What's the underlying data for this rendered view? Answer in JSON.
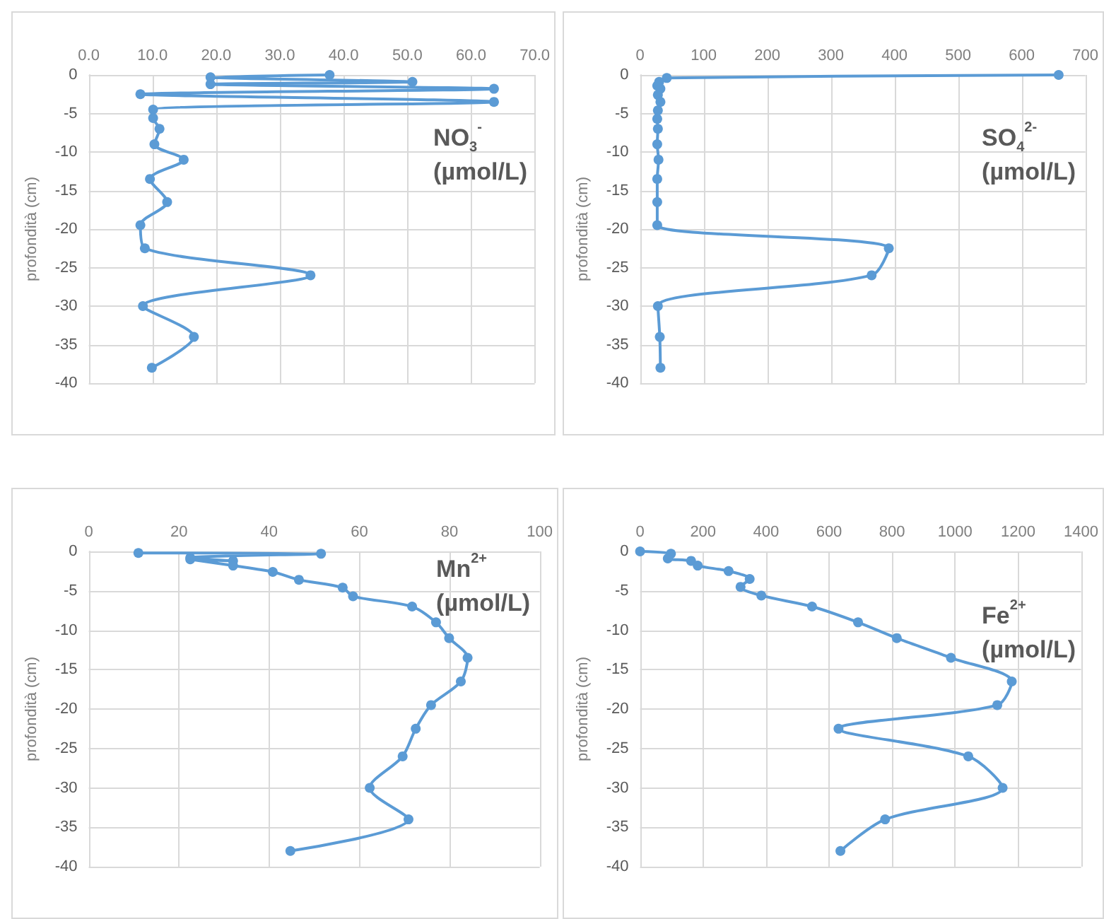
{
  "chart_data": [
    {
      "type": "line",
      "title": "NO$_{3}$$^{-}$ (µmol/L)",
      "ylabel": "profondità (cm)",
      "marker": "circle",
      "line_style": "solid",
      "grid": true,
      "xlim": [
        0,
        70
      ],
      "xticks": [
        {
          "value": 0,
          "label": "0.0"
        },
        {
          "value": 10,
          "label": "10.0"
        },
        {
          "value": 20,
          "label": "20.0"
        },
        {
          "value": 30,
          "label": "30.0"
        },
        {
          "value": 40,
          "label": "40.0"
        },
        {
          "value": 50,
          "label": "50.0"
        },
        {
          "value": 60,
          "label": "60.0"
        },
        {
          "value": 70,
          "label": "70.0"
        }
      ],
      "ylim": [
        -40,
        0
      ],
      "yticks": [
        -40,
        -35,
        -30,
        -25,
        -20,
        -15,
        -10,
        -5,
        0
      ],
      "series": [
        {
          "color": "#5b9bd5",
          "x": [
            37.8,
            19.1,
            50.8,
            19.1,
            63.6,
            8.1,
            63.6,
            10.1,
            10.1,
            11.1,
            10.3,
            14.9,
            9.6,
            12.3,
            8.1,
            8.8,
            34.8,
            8.5,
            16.5,
            9.9
          ],
          "values": [
            0,
            -0.3,
            -0.9,
            -1.2,
            -1.8,
            -2.5,
            -3.5,
            -4.5,
            -5.6,
            -7,
            -9,
            -11,
            -13.5,
            -16.5,
            -19.5,
            -22.5,
            -26,
            -30,
            -34,
            -38
          ]
        }
      ]
    },
    {
      "type": "line",
      "title": "SO$_{4}$$^{2-}$ (µmol/L)",
      "ylabel": "profondità (cm)",
      "marker": "circle",
      "line_style": "solid",
      "grid": true,
      "xlim": [
        0,
        700
      ],
      "xticks": [
        0,
        100,
        200,
        300,
        400,
        500,
        600,
        700
      ],
      "ylim": [
        -40,
        0
      ],
      "yticks": [
        -40,
        -35,
        -30,
        -25,
        -20,
        -15,
        -10,
        -5,
        0
      ],
      "series": [
        {
          "color": "#5b9bd5",
          "x": [
            658,
            42,
            30,
            27,
            32,
            28,
            32,
            28,
            27,
            28,
            27,
            29,
            27,
            27,
            27,
            391,
            364,
            28,
            31,
            32
          ],
          "values": [
            0,
            -0.4,
            -0.9,
            -1.4,
            -1.8,
            -2.6,
            -3.5,
            -4.6,
            -5.7,
            -7,
            -9,
            -11,
            -13.5,
            -16.5,
            -19.5,
            -22.5,
            -26,
            -30,
            -34,
            -38
          ]
        }
      ]
    },
    {
      "type": "line",
      "title": "Mn$^{2+}$ (µmol/L)",
      "ylabel": "profondità (cm)",
      "marker": "circle",
      "line_style": "solid",
      "grid": true,
      "xlim": [
        0,
        100
      ],
      "xticks": [
        0,
        20,
        40,
        60,
        80,
        100
      ],
      "ylim": [
        -40,
        0
      ],
      "yticks": [
        -40,
        -35,
        -30,
        -25,
        -20,
        -15,
        -10,
        -5,
        0
      ],
      "series": [
        {
          "color": "#5b9bd5",
          "x": [
            11,
            51.5,
            22.5,
            32,
            22.5,
            32,
            40.8,
            46.6,
            56.3,
            58.6,
            71.7,
            77,
            79.9,
            84,
            82.5,
            75.9,
            72.5,
            69.6,
            62.3,
            70.9,
            44.7
          ],
          "values": [
            -0.2,
            -0.3,
            -0.8,
            -1.2,
            -1.0,
            -1.8,
            -2.6,
            -3.6,
            -4.6,
            -5.7,
            -7,
            -9,
            -11,
            -13.5,
            -16.5,
            -19.5,
            -22.5,
            -26,
            -30,
            -34,
            -38
          ]
        }
      ]
    },
    {
      "type": "line",
      "title": "Fe$^{2+}$ (µmol/L)",
      "ylabel": "profondità (cm)",
      "marker": "circle",
      "line_style": "solid",
      "grid": true,
      "xlim": [
        0,
        1400
      ],
      "xticks": [
        0,
        200,
        400,
        600,
        800,
        1000,
        1200,
        1400
      ],
      "ylim": [
        -40,
        0
      ],
      "yticks": [
        -40,
        -35,
        -30,
        -25,
        -20,
        -15,
        -10,
        -5,
        0
      ],
      "series": [
        {
          "color": "#5b9bd5",
          "x": [
            0,
            98,
            88,
            162,
            183,
            281,
            348,
            319,
            385,
            546,
            692,
            815,
            987,
            1180,
            1134,
            630,
            1042,
            1151,
            778,
            636
          ],
          "values": [
            0,
            -0.3,
            -0.9,
            -1.2,
            -1.8,
            -2.5,
            -3.5,
            -4.5,
            -5.6,
            -7,
            -9,
            -11,
            -13.5,
            -16.5,
            -19.5,
            -22.5,
            -26,
            -30,
            -34,
            -38
          ]
        }
      ]
    }
  ]
}
